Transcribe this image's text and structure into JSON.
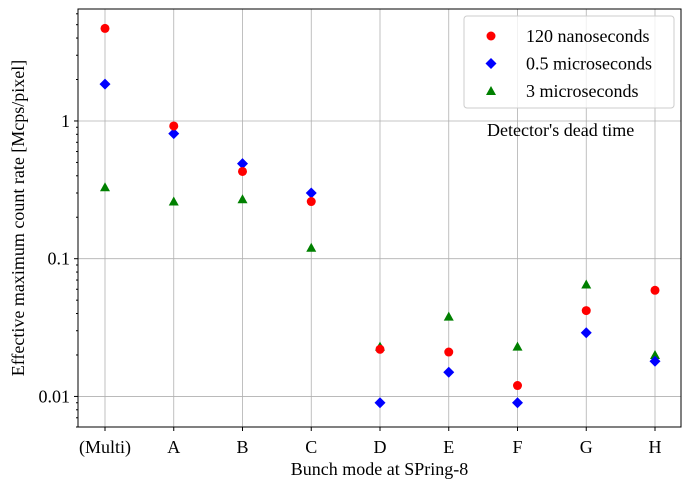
{
  "chart_data": {
    "type": "scatter",
    "categories": [
      "(Multi)",
      "A",
      "B",
      "C",
      "D",
      "E",
      "F",
      "G",
      "H"
    ],
    "xlabel": "Bunch mode at SPring-8",
    "ylabel": "Effective maximum count rate [Mcps/pixel]",
    "yscale": "log",
    "ylim": [
      0.006,
      6.5
    ],
    "yticks": [
      {
        "value": 0.01,
        "label": "0.01"
      },
      {
        "value": 0.1,
        "label": "0.1"
      },
      {
        "value": 1,
        "label": "1"
      }
    ],
    "grid": true,
    "legend": {
      "placement": "top-right",
      "title": "Detector's dead time"
    },
    "series": [
      {
        "name": "120 nanoseconds",
        "marker": "circle",
        "color": "#ff0000",
        "values": [
          4.7,
          0.92,
          0.43,
          0.26,
          0.022,
          0.021,
          0.012,
          0.042,
          0.059
        ]
      },
      {
        "name": "0.5 microseconds",
        "marker": "diamond",
        "color": "#0000ff",
        "values": [
          1.85,
          0.81,
          0.49,
          0.3,
          0.009,
          0.015,
          0.009,
          0.029,
          0.018
        ]
      },
      {
        "name": "3 microseconds",
        "marker": "triangle",
        "color": "#008000",
        "values": [
          0.33,
          0.26,
          0.27,
          0.12,
          0.023,
          0.038,
          0.023,
          0.065,
          0.02
        ]
      }
    ]
  }
}
